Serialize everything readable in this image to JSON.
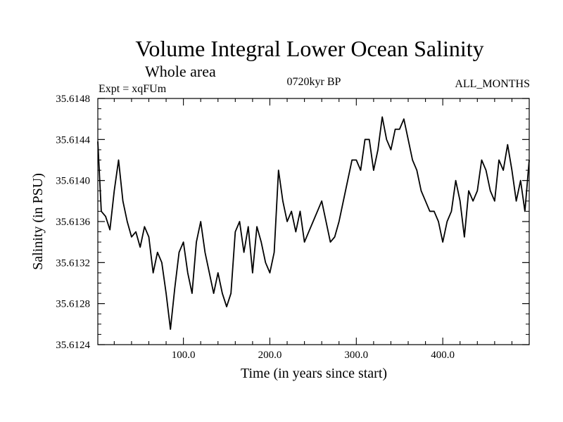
{
  "chart_data": {
    "type": "line",
    "title": "Volume Integral Lower Ocean Salinity",
    "subtitle": "Whole area",
    "expt_label": "Expt = xqFUm",
    "period_label": "0720kyr BP",
    "months_label": "ALL_MONTHS",
    "xlabel": "Time (in years since start)",
    "ylabel": "Salinity (in PSU)",
    "xlim": [
      1,
      500
    ],
    "ylim": [
      35.6124,
      35.6148
    ],
    "x_ticks": [
      100,
      200,
      300,
      400
    ],
    "x_tick_labels": [
      "100.0",
      "200.0",
      "300.0",
      "400.0"
    ],
    "y_ticks": [
      35.6124,
      35.6128,
      35.6132,
      35.6136,
      35.614,
      35.6144,
      35.6148
    ],
    "y_tick_labels": [
      "35.6124",
      "35.6128",
      "35.6132",
      "35.6136",
      "35.6140",
      "35.6144",
      "35.6148"
    ],
    "series": [
      {
        "name": "Salinity",
        "x": [
          1,
          5,
          10,
          15,
          20,
          25,
          30,
          35,
          40,
          45,
          50,
          55,
          60,
          65,
          70,
          75,
          80,
          85,
          90,
          95,
          100,
          105,
          110,
          115,
          120,
          125,
          130,
          135,
          140,
          145,
          150,
          155,
          160,
          165,
          170,
          175,
          180,
          185,
          190,
          195,
          200,
          205,
          210,
          215,
          220,
          225,
          230,
          235,
          240,
          245,
          250,
          255,
          260,
          265,
          270,
          275,
          280,
          285,
          290,
          295,
          300,
          305,
          310,
          315,
          320,
          325,
          330,
          335,
          340,
          345,
          350,
          355,
          360,
          365,
          370,
          375,
          380,
          385,
          390,
          395,
          400,
          405,
          410,
          415,
          420,
          425,
          430,
          435,
          440,
          445,
          450,
          455,
          460,
          465,
          470,
          475,
          480,
          485,
          490,
          495,
          500
        ],
        "values": [
          35.61438,
          35.6137,
          35.61365,
          35.61352,
          35.6139,
          35.6142,
          35.6138,
          35.6136,
          35.61345,
          35.6135,
          35.61335,
          35.61355,
          35.61345,
          35.6131,
          35.6133,
          35.6132,
          35.6129,
          35.61255,
          35.61295,
          35.6133,
          35.6134,
          35.6131,
          35.6129,
          35.6134,
          35.6136,
          35.6133,
          35.6131,
          35.6129,
          35.6131,
          35.6129,
          35.61277,
          35.6129,
          35.6135,
          35.6136,
          35.6133,
          35.61355,
          35.6131,
          35.61355,
          35.6134,
          35.6132,
          35.6131,
          35.6133,
          35.6141,
          35.6138,
          35.6136,
          35.6137,
          35.6135,
          35.6137,
          35.6134,
          35.6135,
          35.6136,
          35.6137,
          35.6138,
          35.6136,
          35.6134,
          35.61345,
          35.6136,
          35.6138,
          35.614,
          35.6142,
          35.6142,
          35.6141,
          35.6144,
          35.6144,
          35.6141,
          35.6143,
          35.61462,
          35.6144,
          35.6143,
          35.6145,
          35.6145,
          35.6146,
          35.6144,
          35.6142,
          35.6141,
          35.6139,
          35.6138,
          35.6137,
          35.6137,
          35.6136,
          35.6134,
          35.6136,
          35.6137,
          35.614,
          35.6138,
          35.61345,
          35.6139,
          35.6138,
          35.6139,
          35.6142,
          35.6141,
          35.6139,
          35.6138,
          35.6142,
          35.6141,
          35.61435,
          35.6141,
          35.6138,
          35.614,
          35.6137,
          35.6142
        ]
      }
    ]
  }
}
